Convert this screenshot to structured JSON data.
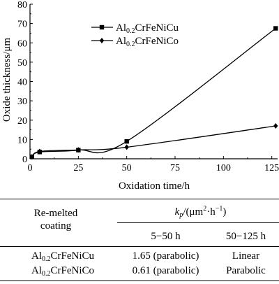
{
  "chart_data": {
    "type": "line",
    "xlabel": "Oxidation time/h",
    "ylabel": "Oxide thickness/μm",
    "xlim": [
      0,
      128
    ],
    "ylim": [
      0,
      80
    ],
    "xticks": [
      0,
      25,
      50,
      75,
      100,
      125
    ],
    "yticks": [
      0,
      10,
      20,
      30,
      40,
      50,
      60,
      70,
      80
    ],
    "legend_position": "top-left",
    "series": [
      {
        "name_base": "Al",
        "name_sub": "0.2",
        "name_rest": "CrFeNiCu",
        "marker": "square",
        "x": [
          1,
          5,
          25,
          50,
          127
        ],
        "y": [
          1.0,
          3.5,
          4.5,
          9.0,
          67.5
        ]
      },
      {
        "name_base": "Al",
        "name_sub": "0.2",
        "name_rest": "CrFeNiCo",
        "marker": "diamond",
        "x": [
          1,
          5,
          25,
          50,
          127
        ],
        "y": [
          1.0,
          3.8,
          4.6,
          6.0,
          17.0
        ]
      }
    ]
  },
  "table": {
    "header_row_label_line1": "Re-melted",
    "header_row_label_line2": "coating",
    "kp_symbol": "k",
    "kp_subscript": "p",
    "kp_units_open": "/(μm",
    "kp_units_sup": "2",
    "kp_units_mid": "·h",
    "kp_units_sup2": "−1",
    "kp_units_close": ")",
    "col1_header": "5−50 h",
    "col2_header": "50−125 h",
    "rows": [
      {
        "name_base": "Al",
        "name_sub": "0.2",
        "name_rest": "CrFeNiCu",
        "v1": "1.65 (parabolic)",
        "v2": "Linear"
      },
      {
        "name_base": "Al",
        "name_sub": "0.2",
        "name_rest": "CrFeNiCo",
        "v1": "0.61 (parabolic)",
        "v2": "Parabolic"
      }
    ]
  }
}
